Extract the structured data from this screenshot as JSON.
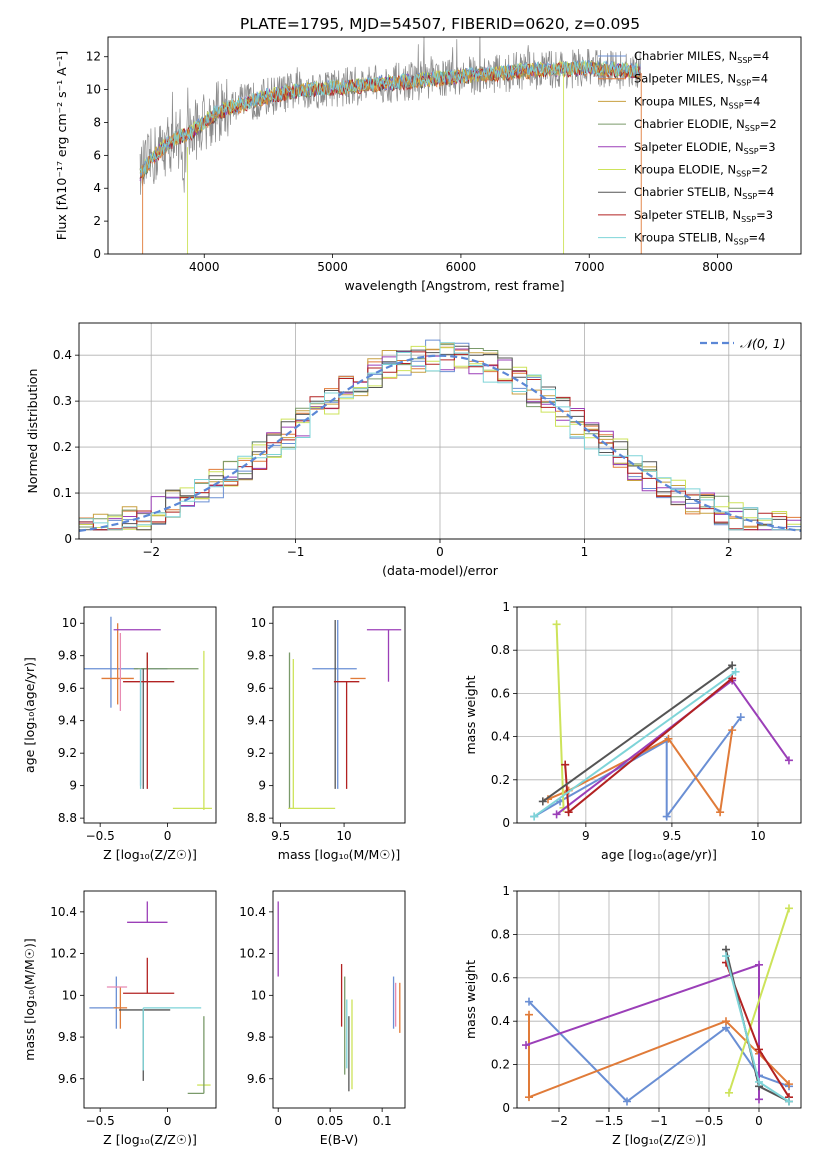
{
  "figure": {
    "title": "PLATE=1795, MJD=54507, FIBERID=0620, z=0.095"
  },
  "colors": {
    "c0": "#6a8fd4",
    "c1": "#e07b39",
    "c2": "#c8a040",
    "c3": "#7a9a6a",
    "c4": "#9b3fb8",
    "c5": "#cde35a",
    "c6": "#555555",
    "c7": "#b22222",
    "c8": "#7ed4d8",
    "grey": "#8a8a8a",
    "pink": "#e88bb3"
  },
  "chart_data": [
    {
      "type": "line",
      "xlabel": "wavelength [Angstrom, rest frame]",
      "ylabel": "Flux [fλ10⁻¹⁷ erg cm⁻² s⁻¹ A⁻¹]",
      "xlim": [
        3250,
        8650
      ],
      "ylim": [
        0,
        13.2
      ],
      "xticks": [
        4000,
        5000,
        6000,
        7000,
        8000
      ],
      "yticks": [
        0,
        2,
        4,
        6,
        8,
        10,
        12
      ],
      "grid": false,
      "legend": "upper-right",
      "legend_entries": [
        {
          "label": "Chabrier MILES, N",
          "sub": "SSP",
          "tail": "=4",
          "color": "c0"
        },
        {
          "label": "Salpeter MILES, N",
          "sub": "SSP",
          "tail": "=4",
          "color": "c1"
        },
        {
          "label": "Kroupa MILES, N",
          "sub": "SSP",
          "tail": "=4",
          "color": "c2"
        },
        {
          "label": "Chabrier ELODIE, N",
          "sub": "SSP",
          "tail": "=2",
          "color": "c3"
        },
        {
          "label": "Salpeter ELODIE, N",
          "sub": "SSP",
          "tail": "=3",
          "color": "c4"
        },
        {
          "label": "Kroupa ELODIE, N",
          "sub": "SSP",
          "tail": "=2",
          "color": "c5"
        },
        {
          "label": "Chabrier STELIB, N",
          "sub": "SSP",
          "tail": "=4",
          "color": "c6"
        },
        {
          "label": "Salpeter STELIB, N",
          "sub": "SSP",
          "tail": "=3",
          "color": "c7"
        },
        {
          "label": "Kroupa STELIB, N",
          "sub": "SSP",
          "tail": "=4",
          "color": "c8"
        }
      ],
      "continuum": [
        [
          3500,
          4.8
        ],
        [
          3600,
          5.9
        ],
        [
          3700,
          6.6
        ],
        [
          3800,
          7.1
        ],
        [
          3900,
          7.4
        ],
        [
          4000,
          8.0
        ],
        [
          4100,
          8.6
        ],
        [
          4200,
          8.9
        ],
        [
          4300,
          9.1
        ],
        [
          4500,
          9.6
        ],
        [
          4700,
          9.9
        ],
        [
          5000,
          10.1
        ],
        [
          5300,
          10.3
        ],
        [
          5600,
          10.5
        ],
        [
          6000,
          10.8
        ],
        [
          6300,
          11.0
        ],
        [
          6600,
          11.2
        ],
        [
          7000,
          11.3
        ],
        [
          7400,
          11.1
        ]
      ]
    },
    {
      "type": "bar",
      "xlabel": "(data-model)/error",
      "ylabel": "Normed distribution",
      "xlim": [
        -2.5,
        2.5
      ],
      "ylim": [
        0,
        0.47
      ],
      "xticks": [
        -2,
        -1,
        0,
        1,
        2
      ],
      "yticks": [
        0.0,
        0.1,
        0.2,
        0.3,
        0.4
      ],
      "grid": true,
      "legend": "upper-right",
      "legend_label": "𝒩(0, 1)",
      "gaussian": {
        "mean": 0,
        "sigma": 1
      },
      "bin_width": 0.1
    },
    {
      "type": "scatter",
      "xlabel": "Z [log₁₀(Z/Z☉)]",
      "ylabel": "age  [log₁₀(age/yr)]",
      "xlim": [
        -0.62,
        0.36
      ],
      "ylim": [
        8.77,
        10.1
      ],
      "xticks": [
        -0.5,
        0.0
      ],
      "yticks": [
        8.8,
        9.0,
        9.2,
        9.4,
        9.6,
        9.8,
        10.0
      ],
      "grid": false,
      "points": [
        {
          "x": -0.42,
          "y": 9.72,
          "xerr": [
            0.2,
            0.2
          ],
          "yerr": [
            0.24,
            0.32
          ],
          "color": "c0"
        },
        {
          "x": -0.2,
          "y": 9.72,
          "xerr": [
            0.0,
            0.2
          ],
          "yerr": [
            0.72,
            0.0
          ],
          "color": "c0"
        },
        {
          "x": -0.37,
          "y": 9.66,
          "xerr": [
            0.12,
            0.12
          ],
          "yerr": [
            0.16,
            0.34
          ],
          "color": "c1"
        },
        {
          "x": -0.35,
          "y": 9.66,
          "xerr": [
            0.0,
            0.0
          ],
          "yerr": [
            0.2,
            0.28
          ],
          "color": "pink"
        },
        {
          "x": -0.15,
          "y": 9.72,
          "xerr": [
            0.1,
            0.38
          ],
          "yerr": [
            0.0,
            0.1
          ],
          "color": "c3"
        },
        {
          "x": -0.2,
          "y": 9.96,
          "xerr": [
            0.2,
            0.15
          ],
          "yerr": [
            0.0,
            0.0
          ],
          "color": "c4"
        },
        {
          "x": 0.27,
          "y": 8.86,
          "xerr": [
            0.23,
            0.06
          ],
          "yerr": [
            0.0,
            0.0
          ],
          "color": "c5"
        },
        {
          "x": 0.27,
          "y": 9.6,
          "xerr": [
            0.0,
            0.0
          ],
          "yerr": [
            0.75,
            0.23
          ],
          "color": "c5"
        },
        {
          "x": -0.18,
          "y": 9.72,
          "xerr": [
            0.0,
            0.0
          ],
          "yerr": [
            0.74,
            0.0
          ],
          "color": "c6"
        },
        {
          "x": -0.15,
          "y": 9.64,
          "xerr": [
            0.18,
            0.2
          ],
          "yerr": [
            0.66,
            0.18
          ],
          "color": "c7"
        },
        {
          "x": -0.2,
          "y": 9.72,
          "xerr": [
            0.0,
            0.0
          ],
          "yerr": [
            0.74,
            0.0
          ],
          "color": "c8"
        }
      ]
    },
    {
      "type": "scatter",
      "xlabel": "mass [log₁₀(M/M☉)]",
      "ylabel": "",
      "xlim": [
        9.44,
        10.48
      ],
      "ylim": [
        8.77,
        10.1
      ],
      "xticks": [
        9.5,
        10.0
      ],
      "yticks": [
        8.8,
        9.0,
        9.2,
        9.4,
        9.6,
        9.8,
        10.0
      ],
      "grid": false,
      "points": [
        {
          "x": 9.57,
          "y": 9.72,
          "xerr": [
            0.0,
            0.0
          ],
          "yerr": [
            0.86,
            0.1
          ],
          "color": "c3"
        },
        {
          "x": 9.6,
          "y": 9.72,
          "xerr": [
            0.0,
            0.0
          ],
          "yerr": [
            0.86,
            0.06
          ],
          "color": "c5"
        },
        {
          "x": 9.56,
          "y": 8.86,
          "xerr": [
            0.0,
            0.37
          ],
          "yerr": [
            0.0,
            0.0
          ],
          "color": "c5"
        },
        {
          "x": 9.95,
          "y": 9.72,
          "xerr": [
            0.2,
            0.15
          ],
          "yerr": [
            0.74,
            0.3
          ],
          "color": "c0"
        },
        {
          "x": 9.93,
          "y": 9.72,
          "xerr": [
            0.0,
            0.0
          ],
          "yerr": [
            0.74,
            0.3
          ],
          "color": "c6"
        },
        {
          "x": 10.02,
          "y": 9.64,
          "xerr": [
            0.1,
            0.1
          ],
          "yerr": [
            0.66,
            0.0
          ],
          "color": "c7"
        },
        {
          "x": 10.05,
          "y": 9.66,
          "xerr": [
            0.0,
            0.12
          ],
          "yerr": [
            0.0,
            0.0
          ],
          "color": "c1"
        },
        {
          "x": 10.05,
          "y": 9.7,
          "xerr": [
            0.0,
            0.0
          ],
          "yerr": [
            0.0,
            0.0
          ],
          "color": "pink"
        },
        {
          "x": 10.35,
          "y": 9.96,
          "xerr": [
            0.17,
            0.1
          ],
          "yerr": [
            0.32,
            0.0
          ],
          "color": "c4"
        }
      ]
    },
    {
      "type": "line",
      "xlabel": "age  [log₁₀(age/yr)]",
      "ylabel": "mass weight",
      "xlim": [
        8.6,
        10.25
      ],
      "ylim": [
        0,
        1.0
      ],
      "xticks": [
        9.0,
        9.5,
        10.0
      ],
      "yticks": [
        0.0,
        0.2,
        0.4,
        0.6,
        0.8,
        1.0
      ],
      "grid": true,
      "series": [
        {
          "color": "c0",
          "x": [
            8.7,
            8.85,
            9.47,
            9.47,
            9.9
          ],
          "y": [
            0.03,
            0.1,
            0.38,
            0.03,
            0.49
          ]
        },
        {
          "color": "c1",
          "x": [
            8.78,
            8.9,
            9.48,
            9.78,
            9.85
          ],
          "y": [
            0.11,
            0.15,
            0.39,
            0.05,
            0.43
          ]
        },
        {
          "color": "c5",
          "x": [
            8.83,
            8.87
          ],
          "y": [
            0.92,
            0.07
          ]
        },
        {
          "color": "c4",
          "x": [
            8.83,
            9.85,
            10.18
          ],
          "y": [
            0.04,
            0.66,
            0.29
          ]
        },
        {
          "color": "c7",
          "x": [
            8.88,
            8.9,
            9.85
          ],
          "y": [
            0.27,
            0.05,
            0.67
          ]
        },
        {
          "color": "c6",
          "x": [
            8.75,
            9.85
          ],
          "y": [
            0.1,
            0.73
          ]
        },
        {
          "color": "c8",
          "x": [
            8.7,
            9.87
          ],
          "y": [
            0.03,
            0.7
          ]
        }
      ]
    },
    {
      "type": "scatter",
      "xlabel": "Z [log₁₀(Z/Z☉)]",
      "ylabel": "mass [log₁₀(M/M☉)]",
      "xlim": [
        -0.62,
        0.36
      ],
      "ylim": [
        9.46,
        10.5
      ],
      "xticks": [
        -0.5,
        0.0
      ],
      "yticks": [
        9.6,
        9.8,
        10.0,
        10.2,
        10.4
      ],
      "grid": false,
      "points": [
        {
          "x": -0.38,
          "y": 9.94,
          "xerr": [
            0.2,
            0.0
          ],
          "yerr": [
            0.1,
            0.15
          ],
          "color": "c0"
        },
        {
          "x": -0.35,
          "y": 9.94,
          "xerr": [
            0.05,
            0.05
          ],
          "yerr": [
            0.1,
            0.1
          ],
          "color": "c1"
        },
        {
          "x": -0.35,
          "y": 10.04,
          "xerr": [
            0.1,
            0.05
          ],
          "yerr": [
            0.0,
            0.0
          ],
          "color": "pink"
        },
        {
          "x": -0.18,
          "y": 9.93,
          "xerr": [
            0.18,
            0.2
          ],
          "yerr": [
            0.34,
            0.0
          ],
          "color": "c6"
        },
        {
          "x": -0.15,
          "y": 10.35,
          "xerr": [
            0.15,
            0.15
          ],
          "yerr": [
            0.0,
            0.1
          ],
          "color": "c4"
        },
        {
          "x": -0.15,
          "y": 10.01,
          "xerr": [
            0.18,
            0.2
          ],
          "yerr": [
            0.0,
            0.17
          ],
          "color": "c7"
        },
        {
          "x": -0.18,
          "y": 9.94,
          "xerr": [
            0.0,
            0.43
          ],
          "yerr": [
            0.3,
            0.0
          ],
          "color": "c8"
        },
        {
          "x": 0.27,
          "y": 9.57,
          "xerr": [
            0.05,
            0.05
          ],
          "yerr": [
            0.0,
            0.0
          ],
          "color": "c5"
        },
        {
          "x": 0.27,
          "y": 9.53,
          "xerr": [
            0.12,
            0.0
          ],
          "yerr": [
            0.0,
            0.37
          ],
          "color": "c3"
        }
      ]
    },
    {
      "type": "scatter",
      "xlabel": "E(B-V)",
      "ylabel": "",
      "xlim": [
        -0.005,
        0.122
      ],
      "ylim": [
        9.46,
        10.5
      ],
      "xticks": [
        0.0,
        0.05,
        0.1
      ],
      "yticks": [
        9.6,
        9.8,
        10.0,
        10.2,
        10.4
      ],
      "grid": false,
      "points": [
        {
          "x": 0.0,
          "y": 10.27,
          "xerr": [
            0,
            0
          ],
          "yerr": [
            0.18,
            0.18
          ],
          "color": "c4"
        },
        {
          "x": 0.061,
          "y": 10.0,
          "xerr": [
            0,
            0
          ],
          "yerr": [
            0.15,
            0.15
          ],
          "color": "c7"
        },
        {
          "x": 0.064,
          "y": 9.8,
          "xerr": [
            0,
            0
          ],
          "yerr": [
            0.18,
            0.29
          ],
          "color": "c3"
        },
        {
          "x": 0.066,
          "y": 9.78,
          "xerr": [
            0,
            0
          ],
          "yerr": [
            0.13,
            0.2
          ],
          "color": "c8"
        },
        {
          "x": 0.068,
          "y": 9.8,
          "xerr": [
            0,
            0
          ],
          "yerr": [
            0.26,
            0.1
          ],
          "color": "c6"
        },
        {
          "x": 0.071,
          "y": 9.8,
          "xerr": [
            0,
            0
          ],
          "yerr": [
            0.25,
            0.18
          ],
          "color": "c5"
        },
        {
          "x": 0.111,
          "y": 9.94,
          "xerr": [
            0,
            0
          ],
          "yerr": [
            0.1,
            0.15
          ],
          "color": "c0"
        },
        {
          "x": 0.113,
          "y": 9.92,
          "xerr": [
            0,
            0
          ],
          "yerr": [
            0.07,
            0.14
          ],
          "color": "pink"
        },
        {
          "x": 0.117,
          "y": 9.94,
          "xerr": [
            0,
            0
          ],
          "yerr": [
            0.12,
            0.12
          ],
          "color": "c1"
        }
      ]
    },
    {
      "type": "line",
      "xlabel": "Z [log₁₀(Z/Z☉)]",
      "ylabel": "mass weight",
      "xlim": [
        -2.42,
        0.42
      ],
      "ylim": [
        0,
        1.0
      ],
      "xticks": [
        -2.0,
        -1.5,
        -1.0,
        -0.5,
        0.0
      ],
      "yticks": [
        0.0,
        0.2,
        0.4,
        0.6,
        0.8,
        1.0
      ],
      "grid": true,
      "series": [
        {
          "color": "c0",
          "x": [
            -2.3,
            -1.32,
            -0.33,
            0.0,
            0.3
          ],
          "y": [
            0.49,
            0.03,
            0.37,
            0.15,
            0.1
          ]
        },
        {
          "color": "c1",
          "x": [
            -2.3,
            -2.3,
            -0.33,
            0.0,
            0.3
          ],
          "y": [
            0.43,
            0.05,
            0.4,
            0.25,
            0.11
          ]
        },
        {
          "color": "c4",
          "x": [
            -2.33,
            0.0,
            0.0
          ],
          "y": [
            0.29,
            0.66,
            0.04
          ]
        },
        {
          "color": "c5",
          "x": [
            -0.3,
            0.3
          ],
          "y": [
            0.07,
            0.92
          ]
        },
        {
          "color": "c7",
          "x": [
            -0.33,
            0.0,
            0.3
          ],
          "y": [
            0.67,
            0.27,
            0.05
          ]
        },
        {
          "color": "c6",
          "x": [
            -0.33,
            0.0,
            0.3
          ],
          "y": [
            0.73,
            0.1,
            0.03
          ]
        },
        {
          "color": "c8",
          "x": [
            -0.33,
            0.0,
            0.3
          ],
          "y": [
            0.7,
            0.12,
            0.03
          ]
        }
      ]
    }
  ]
}
